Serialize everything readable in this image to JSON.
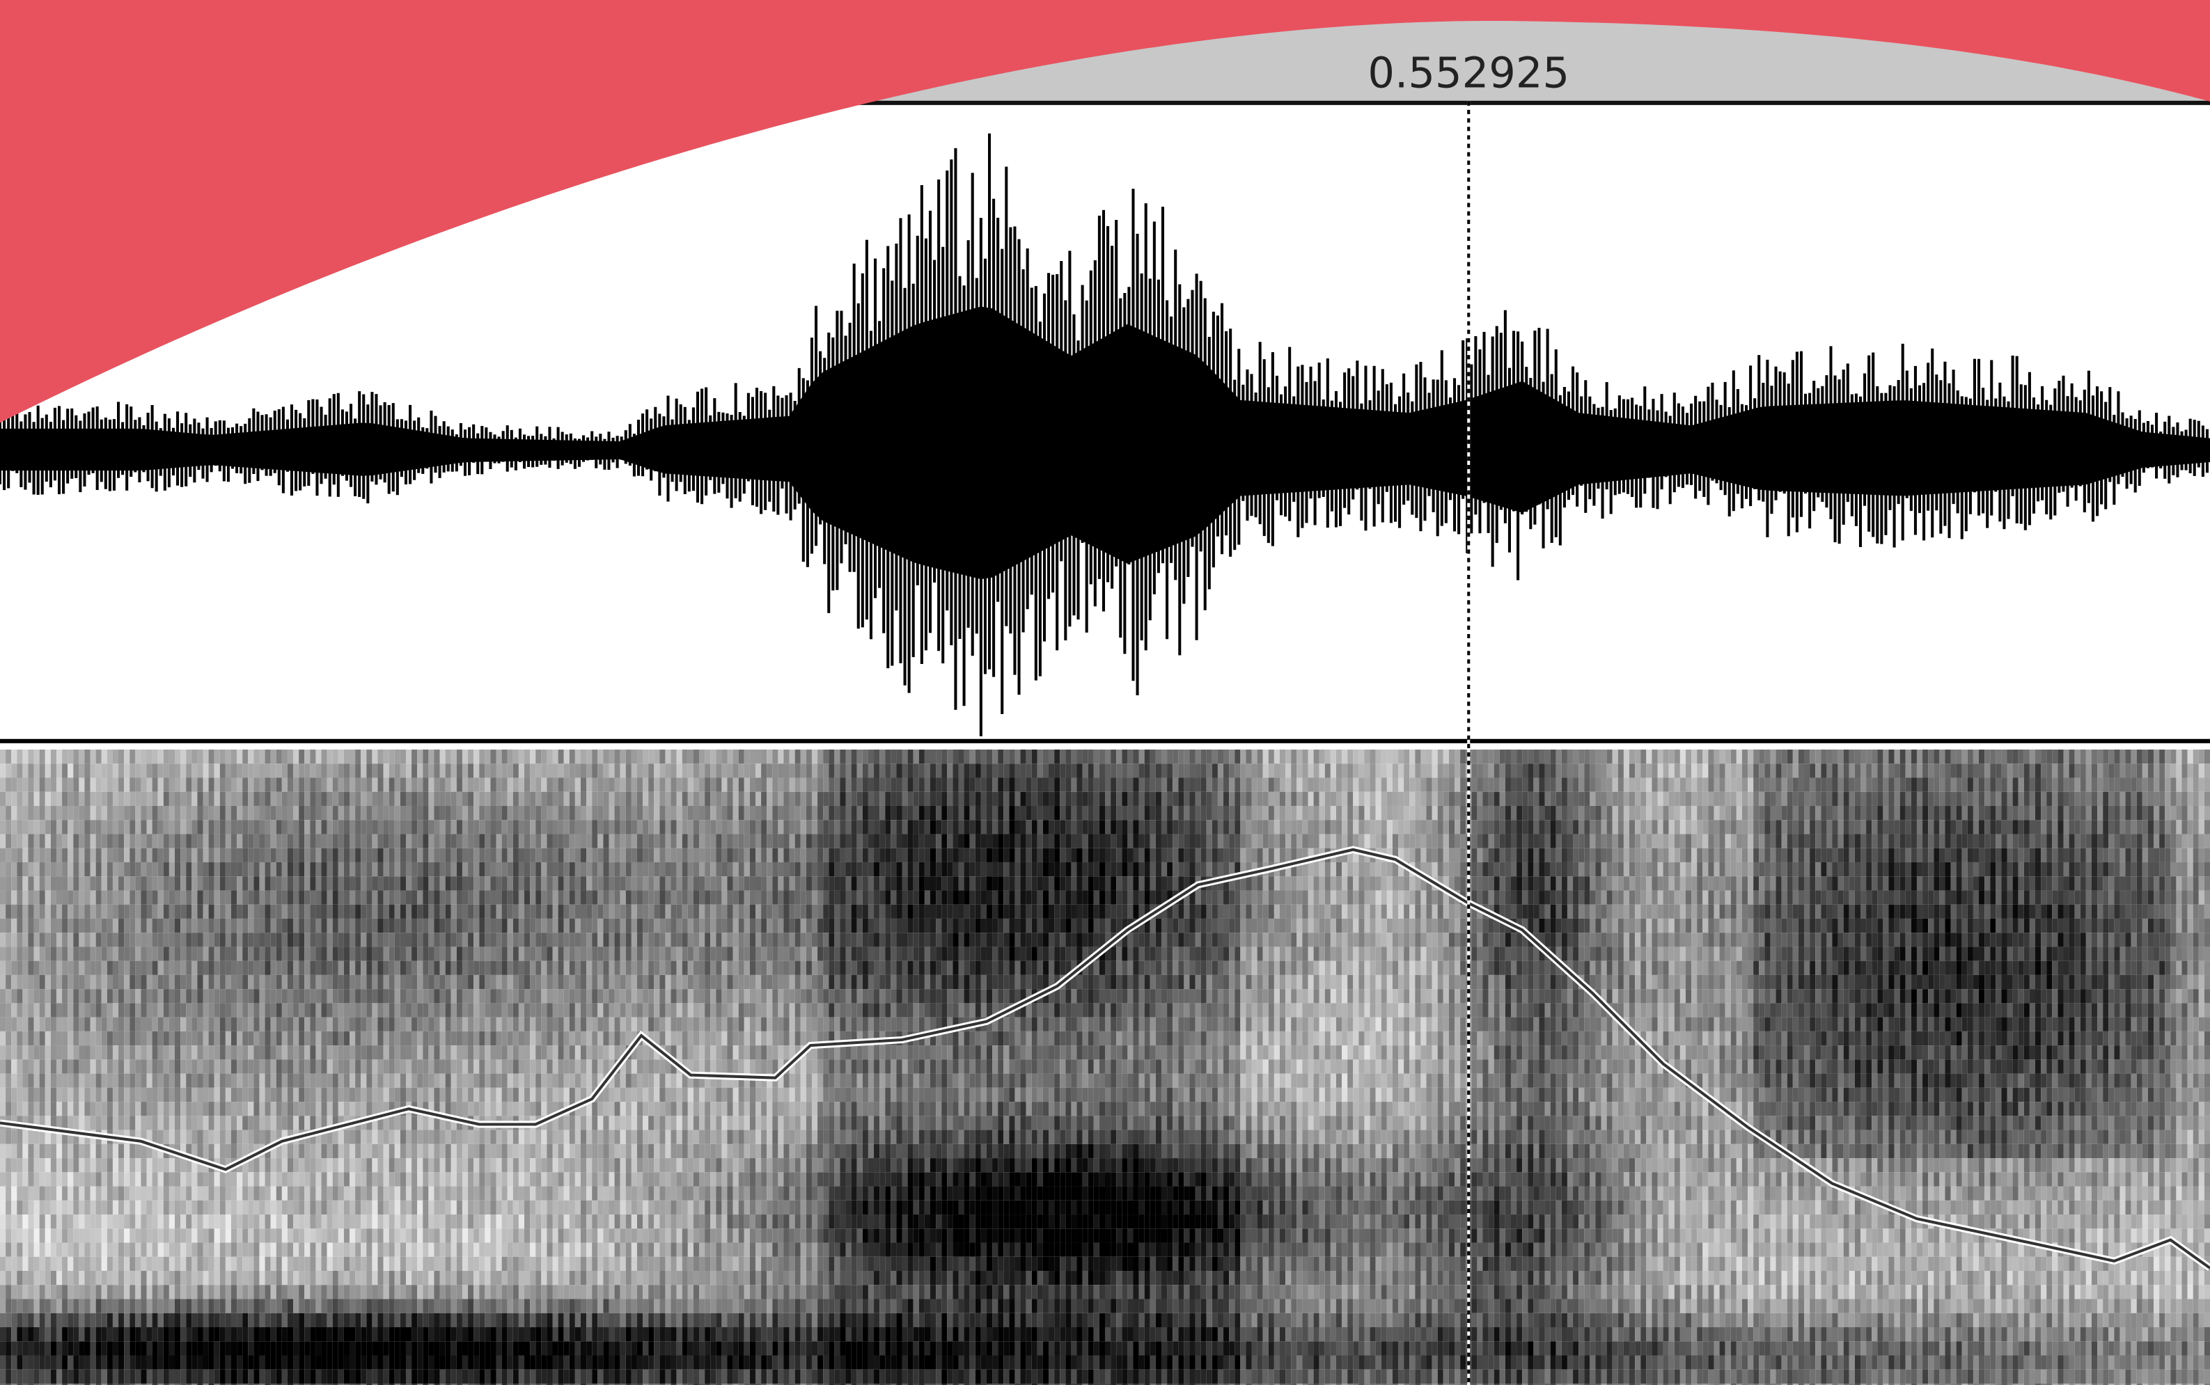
{
  "cursor": {
    "time_label": "0.552925"
  }
}
